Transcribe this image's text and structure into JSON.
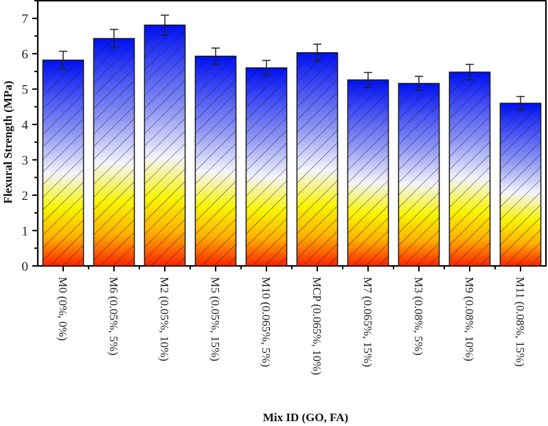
{
  "chart_data": {
    "type": "bar",
    "title": "",
    "xlabel": "Mix ID (GO, FA)",
    "ylabel": "Flexural Strength (MPa)",
    "ylim": [
      0,
      7.5
    ],
    "yticks": [
      0,
      1,
      2,
      3,
      4,
      5,
      6,
      7
    ],
    "grid": false,
    "legend": null,
    "categories": [
      "M0 (0%, 0%)",
      "M6 (0.05%, 5%)",
      "M2 (0.05%, 10%)",
      "M5 (0.05%, 15%)",
      "M10 (0.065%, 5%)",
      "MCP (0.065%, 10%)",
      "M7 (0.065%, 15%)",
      "M3 (0.08%, 5%)",
      "M9 (0.08%, 10%)",
      "M11 (0.08%, 15%)"
    ],
    "values": [
      5.82,
      6.43,
      6.81,
      5.93,
      5.6,
      6.03,
      5.26,
      5.16,
      5.48,
      4.6
    ],
    "errors": [
      0.25,
      0.26,
      0.28,
      0.23,
      0.21,
      0.24,
      0.21,
      0.2,
      0.22,
      0.19
    ],
    "style": {
      "fill": "vertical gradient per bar: blue (top) -> white -> yellow -> orange -> red (bottom)",
      "hatch": "diagonal lines",
      "gradient_stops": [
        {
          "offset": 0.0,
          "color": "#0010f5"
        },
        {
          "offset": 0.35,
          "color": "#8c94f2"
        },
        {
          "offset": 0.55,
          "color": "#f4f4fb"
        },
        {
          "offset": 0.72,
          "color": "#f8f400"
        },
        {
          "offset": 0.86,
          "color": "#ffb000"
        },
        {
          "offset": 1.0,
          "color": "#ff2200"
        }
      ],
      "bar_edge_color": "#1a1a1a",
      "hatch_color": "#1a1a40",
      "errorbar_color": "#222222"
    }
  }
}
